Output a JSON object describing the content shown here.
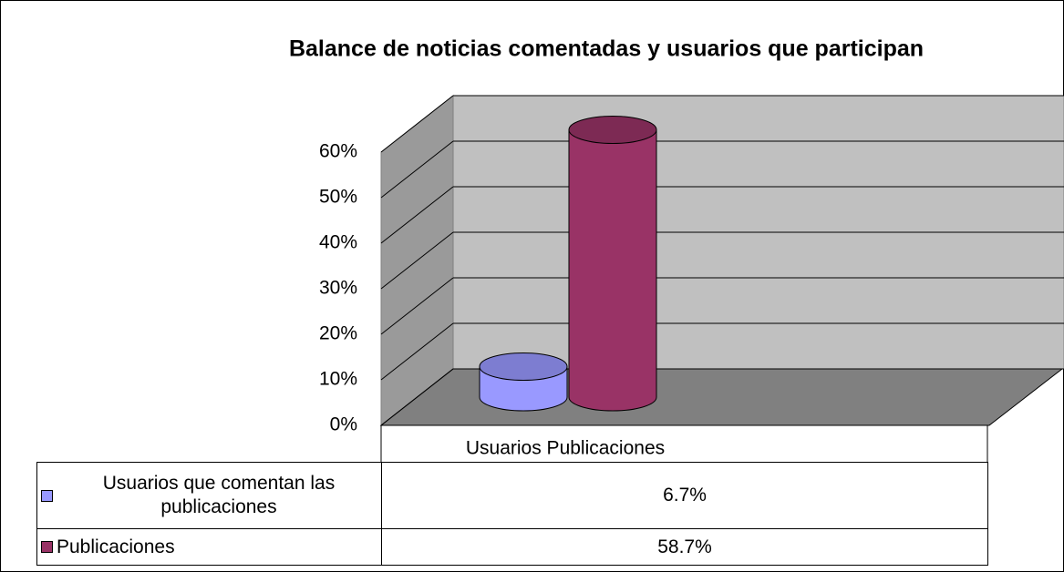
{
  "chart_data": {
    "type": "bar3d",
    "title": "Balance de noticias comentadas y usuarios que participan",
    "categories": [
      "Usuarios Publicaciones"
    ],
    "series": [
      {
        "name": "Usuarios que comentan las publicaciones",
        "color": "#9999ff",
        "values": [
          6.7
        ],
        "value_labels": [
          "6.7%"
        ]
      },
      {
        "name": "Publicaciones",
        "color": "#993366",
        "values": [
          58.7
        ],
        "value_labels": [
          "58.7%"
        ]
      }
    ],
    "ylim": [
      0,
      60
    ],
    "yticks": [
      {
        "value": 0,
        "label": "0%"
      },
      {
        "value": 10,
        "label": "10%"
      },
      {
        "value": 20,
        "label": "20%"
      },
      {
        "value": 30,
        "label": "30%"
      },
      {
        "value": 40,
        "label": "40%"
      },
      {
        "value": 50,
        "label": "50%"
      },
      {
        "value": 60,
        "label": "60%"
      }
    ],
    "grid": true,
    "data_table": true
  }
}
